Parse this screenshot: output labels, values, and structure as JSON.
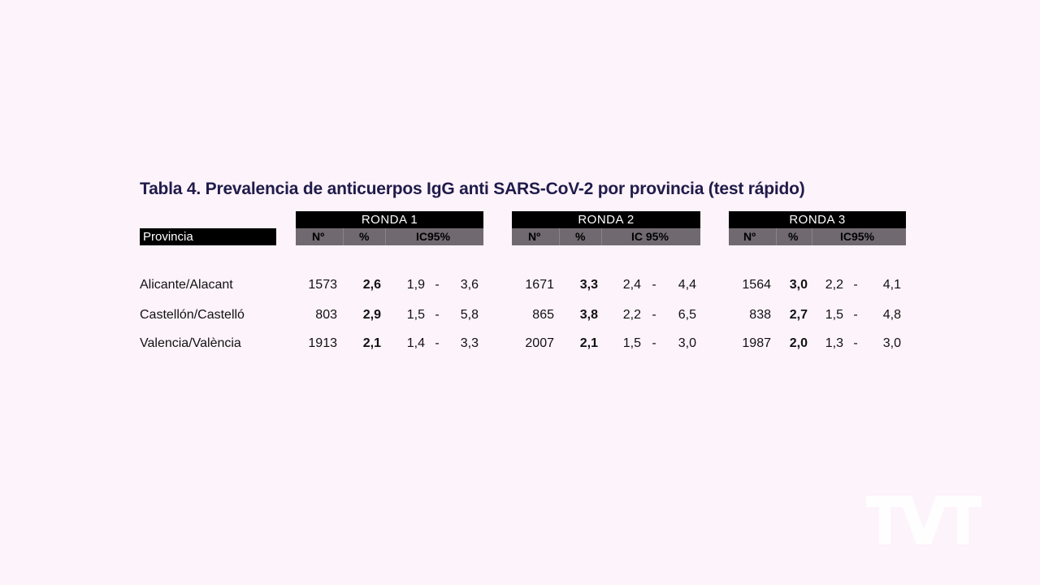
{
  "title": "Tabla 4. Prevalencia de anticuerpos IgG anti SARS-CoV-2 por provincia (test rápido)",
  "province_header": "Provincia",
  "rounds": [
    {
      "label": "RONDA 1",
      "col_n": "Nº",
      "col_pct": "%",
      "col_ic": "IC95%"
    },
    {
      "label": "RONDA 2",
      "col_n": "Nº",
      "col_pct": "%",
      "col_ic": "IC 95%"
    },
    {
      "label": "RONDA 3",
      "col_n": "Nº",
      "col_pct": "%",
      "col_ic": "IC95%"
    }
  ],
  "rows": [
    {
      "province": "Alicante/Alacant",
      "r": [
        {
          "n": "1573",
          "pct": "2,6",
          "lo": "1,9",
          "dash": "-",
          "hi": "3,6"
        },
        {
          "n": "1671",
          "pct": "3,3",
          "lo": "2,4",
          "dash": "-",
          "hi": "4,4"
        },
        {
          "n": "1564",
          "pct": "3,0",
          "lo": "2,2",
          "dash": "-",
          "hi": "4,1"
        }
      ]
    },
    {
      "province": "Castellón/Castelló",
      "r": [
        {
          "n": "803",
          "pct": "2,9",
          "lo": "1,5",
          "dash": "-",
          "hi": "5,8"
        },
        {
          "n": "865",
          "pct": "3,8",
          "lo": "2,2",
          "dash": "-",
          "hi": "6,5"
        },
        {
          "n": "838",
          "pct": "2,7",
          "lo": "1,5",
          "dash": "-",
          "hi": "4,8"
        }
      ]
    },
    {
      "province": "Valencia/València",
      "r": [
        {
          "n": "1913",
          "pct": "2,1",
          "lo": "1,4",
          "dash": "-",
          "hi": "3,3"
        },
        {
          "n": "2007",
          "pct": "2,1",
          "lo": "1,5",
          "dash": "-",
          "hi": "3,0"
        },
        {
          "n": "1987",
          "pct": "2,0",
          "lo": "1,3",
          "dash": "-",
          "hi": "3,0"
        }
      ]
    }
  ],
  "logo": "TVT"
}
